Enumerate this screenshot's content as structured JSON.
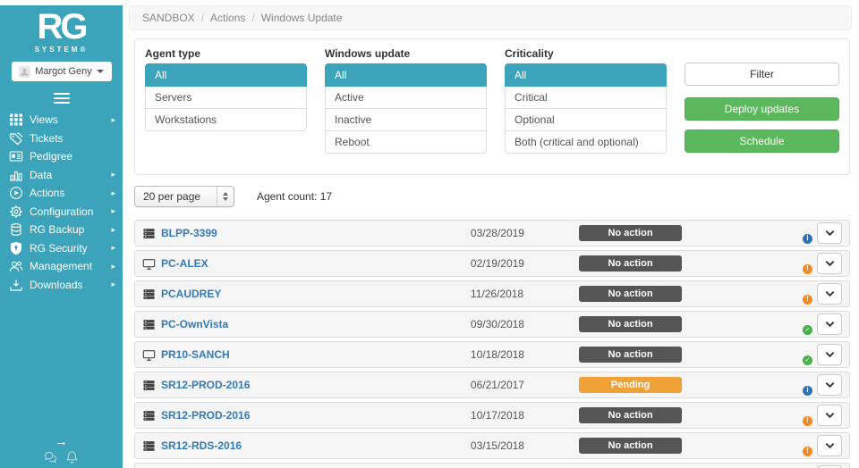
{
  "colors": {
    "teal": "#3BA3BA",
    "green": "#5CB85C",
    "green_border": "#4CAE4C",
    "badge_dark": "#555555",
    "badge_pending": "#F0A137",
    "link_blue": "#337AB7",
    "mini_info": "#2E73B8",
    "mini_warning": "#F28A1F",
    "mini_ok": "#4CAE4C",
    "pie_red": "#DB4437",
    "pie_green": "#7CB342",
    "pie_yellow": "#F4B400",
    "pie_blue": "#4285F4"
  },
  "sidebar": {
    "logo_text": "RG",
    "logo_subtext": "SYSTEM®",
    "user": {
      "name": "Margot Geny"
    },
    "menu": [
      {
        "label": "Views",
        "icon": "grid-icon",
        "has_submenu": true
      },
      {
        "label": "Tickets",
        "icon": "tags-icon",
        "has_submenu": false
      },
      {
        "label": "Pedigree",
        "icon": "id-card-icon",
        "has_submenu": false
      },
      {
        "label": "Data",
        "icon": "bar-chart-icon",
        "has_submenu": true
      },
      {
        "label": "Actions",
        "icon": "play-icon",
        "has_submenu": true
      },
      {
        "label": "Configuration",
        "icon": "gear-icon",
        "has_submenu": true
      },
      {
        "label": "RG Backup",
        "icon": "database-icon",
        "has_submenu": true
      },
      {
        "label": "RG Security",
        "icon": "shield-icon",
        "has_submenu": true
      },
      {
        "label": "Management",
        "icon": "users-icon",
        "has_submenu": true
      },
      {
        "label": "Downloads",
        "icon": "download-icon",
        "has_submenu": true
      }
    ],
    "collapse_arrow": "→"
  },
  "breadcrumb": {
    "items": [
      "SANDBOX",
      "Actions",
      "Windows Update"
    ],
    "separator": "/"
  },
  "filters": {
    "agent_type": {
      "label": "Agent type",
      "selected": "All",
      "options": [
        "All",
        "Servers",
        "Workstations"
      ]
    },
    "windows_update": {
      "label": "Windows update",
      "selected": "All",
      "options": [
        "All",
        "Active",
        "Inactive",
        "Reboot"
      ]
    },
    "criticality": {
      "label": "Criticality",
      "selected": "All",
      "options": [
        "All",
        "Critical",
        "Optional",
        "Both (critical and optional)"
      ]
    },
    "filter_button": "Filter",
    "deploy_button": "Deploy updates",
    "schedule_button": "Schedule"
  },
  "toolbar": {
    "per_page_selected": "20 per page",
    "agent_count_label": "Agent count: 17"
  },
  "table": {
    "rows": [
      {
        "name": "BLPP-3399",
        "type": "server",
        "date": "03/28/2019",
        "status": "No action",
        "status_type": "no-action",
        "update_badge": "info"
      },
      {
        "name": "PC-ALEX",
        "type": "workstation",
        "date": "02/19/2019",
        "status": "No action",
        "status_type": "no-action",
        "update_badge": "warning"
      },
      {
        "name": "PCAUDREY",
        "type": "server",
        "date": "11/26/2018",
        "status": "No action",
        "status_type": "no-action",
        "update_badge": "warning"
      },
      {
        "name": "PC-OwnVista",
        "type": "server",
        "date": "09/30/2018",
        "status": "No action",
        "status_type": "no-action",
        "update_badge": "ok"
      },
      {
        "name": "PR10-SANCH",
        "type": "workstation",
        "date": "10/18/2018",
        "status": "No action",
        "status_type": "no-action",
        "update_badge": "ok"
      },
      {
        "name": "SR12-PROD-2016",
        "type": "server",
        "date": "06/21/2017",
        "status": "Pending",
        "status_type": "pending",
        "update_badge": "info"
      },
      {
        "name": "SR12-PROD-2016",
        "type": "server",
        "date": "10/17/2018",
        "status": "No action",
        "status_type": "no-action",
        "update_badge": "warning"
      },
      {
        "name": "SR12-RDS-2016",
        "type": "server",
        "date": "03/15/2018",
        "status": "No action",
        "status_type": "no-action",
        "update_badge": "warning"
      }
    ]
  }
}
